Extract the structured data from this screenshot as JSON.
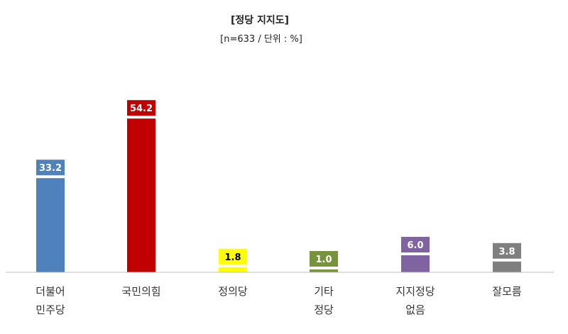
{
  "chart_data": {
    "type": "bar",
    "title": "[정당 지지도]",
    "subtitle": "[n=633 / 단위 : %]",
    "categories": [
      [
        "더불어",
        "민주당"
      ],
      [
        "국민의힘"
      ],
      [
        "정의당"
      ],
      [
        "기타",
        "정당"
      ],
      [
        "지지정당",
        "없음"
      ],
      [
        "잘모름"
      ]
    ],
    "values": [
      33.2,
      54.2,
      1.8,
      1.0,
      6.0,
      3.8
    ],
    "value_labels": [
      "33.2",
      "54.2",
      "1.8",
      "1.0",
      "6.0",
      "3.8"
    ],
    "colors": [
      "#4F81BD",
      "#C00000",
      "#FFFF00",
      "#77933C",
      "#8064A2",
      "#7F7F7F"
    ],
    "label_text_colors": [
      "#ffffff",
      "#ffffff",
      "#000000",
      "#ffffff",
      "#ffffff",
      "#ffffff"
    ],
    "xlabel": "",
    "ylabel": "",
    "ylim": [
      0,
      60
    ],
    "grid": false,
    "legend": "none"
  }
}
